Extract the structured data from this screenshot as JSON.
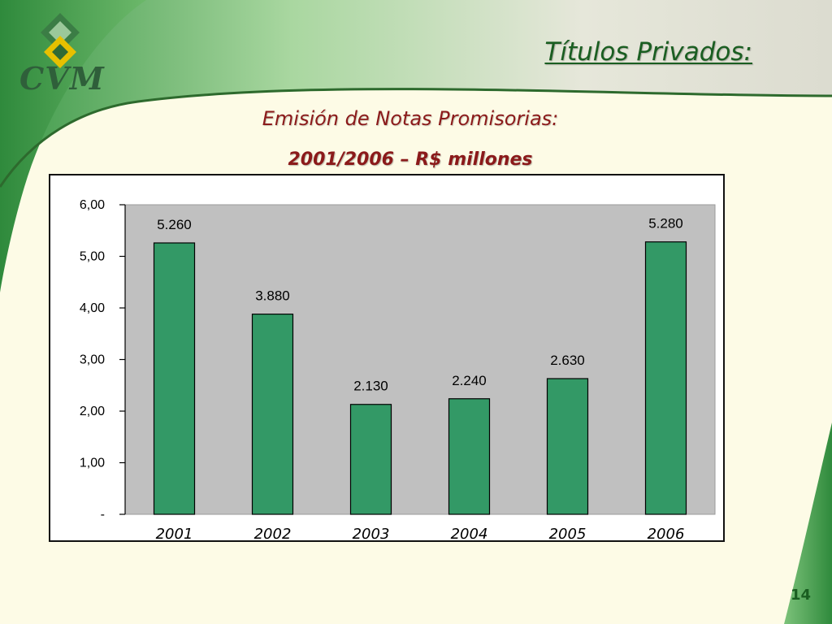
{
  "slide": {
    "logo_text": "CVM",
    "title": "Títulos Privados:",
    "subtitle": "Emisión de Notas Promisorias:",
    "subtitle2": "2001/2006 – R$ millones",
    "page_number": "14"
  },
  "colors": {
    "bar_fill": "#339966",
    "plot_bg": "#c0c0c0",
    "title_green": "#1a5e21",
    "subtitle_red": "#8b1a1a"
  },
  "chart_data": {
    "type": "bar",
    "categories": [
      "2001",
      "2002",
      "2003",
      "2004",
      "2005",
      "2006"
    ],
    "values": [
      5.26,
      3.88,
      2.13,
      2.24,
      2.63,
      5.28
    ],
    "data_labels": [
      "5.260",
      "3.880",
      "2.130",
      "2.240",
      "2.630",
      "5.280"
    ],
    "yticks": [
      0,
      1,
      2,
      3,
      4,
      5,
      6
    ],
    "ytick_labels": [
      "-",
      "1,00",
      "2,00",
      "3,00",
      "4,00",
      "5,00",
      "6,00"
    ],
    "ylim": [
      0,
      6
    ],
    "title": "",
    "xlabel": "",
    "ylabel": "",
    "grid": false
  }
}
